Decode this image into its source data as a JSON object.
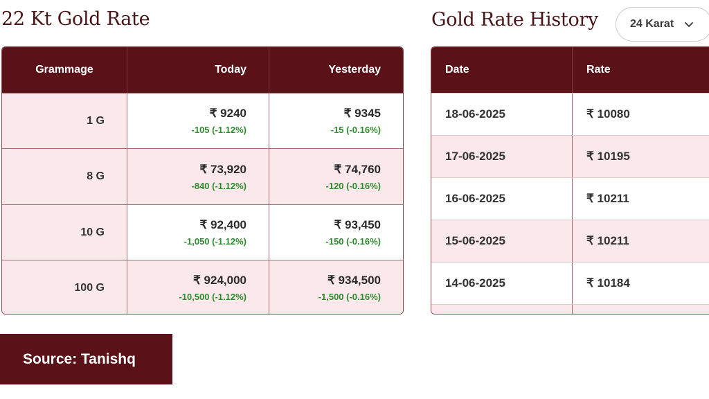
{
  "rate_section": {
    "title": "22 Kt Gold Rate",
    "headers": [
      "Grammage",
      "Today",
      "Yesterday"
    ],
    "rows": [
      {
        "grammage": "1 G",
        "today_price": "₹ 9240",
        "today_change": "-105 (-1.12%)",
        "yesterday_price": "₹ 9345",
        "yesterday_change": "-15 (-0.16%)"
      },
      {
        "grammage": "8 G",
        "today_price": "₹ 73,920",
        "today_change": "-840 (-1.12%)",
        "yesterday_price": "₹ 74,760",
        "yesterday_change": "-120 (-0.16%)"
      },
      {
        "grammage": "10 G",
        "today_price": "₹ 92,400",
        "today_change": "-1,050 (-1.12%)",
        "yesterday_price": "₹ 93,450",
        "yesterday_change": "-150 (-0.16%)"
      },
      {
        "grammage": "100 G",
        "today_price": "₹ 924,000",
        "today_change": "-10,500 (-1.12%)",
        "yesterday_price": "₹ 934,500",
        "yesterday_change": "-1,500 (-0.16%)"
      }
    ]
  },
  "history_section": {
    "title": "Gold Rate History",
    "karat_select": {
      "value": "24 Karat"
    },
    "headers": [
      "Date",
      "Rate"
    ],
    "rows": [
      {
        "date": "18-06-2025",
        "rate": "₹ 10080"
      },
      {
        "date": "17-06-2025",
        "rate": "₹ 10195"
      },
      {
        "date": "16-06-2025",
        "rate": "₹ 10211"
      },
      {
        "date": "15-06-2025",
        "rate": "₹ 10211"
      },
      {
        "date": "14-06-2025",
        "rate": "₹ 10184"
      }
    ]
  },
  "source_button": {
    "label": "Source: Tanishq"
  },
  "colors": {
    "maroon": "#5a1218",
    "pink_row": "#fbe8ea",
    "change_green": "#2e8b2e"
  }
}
